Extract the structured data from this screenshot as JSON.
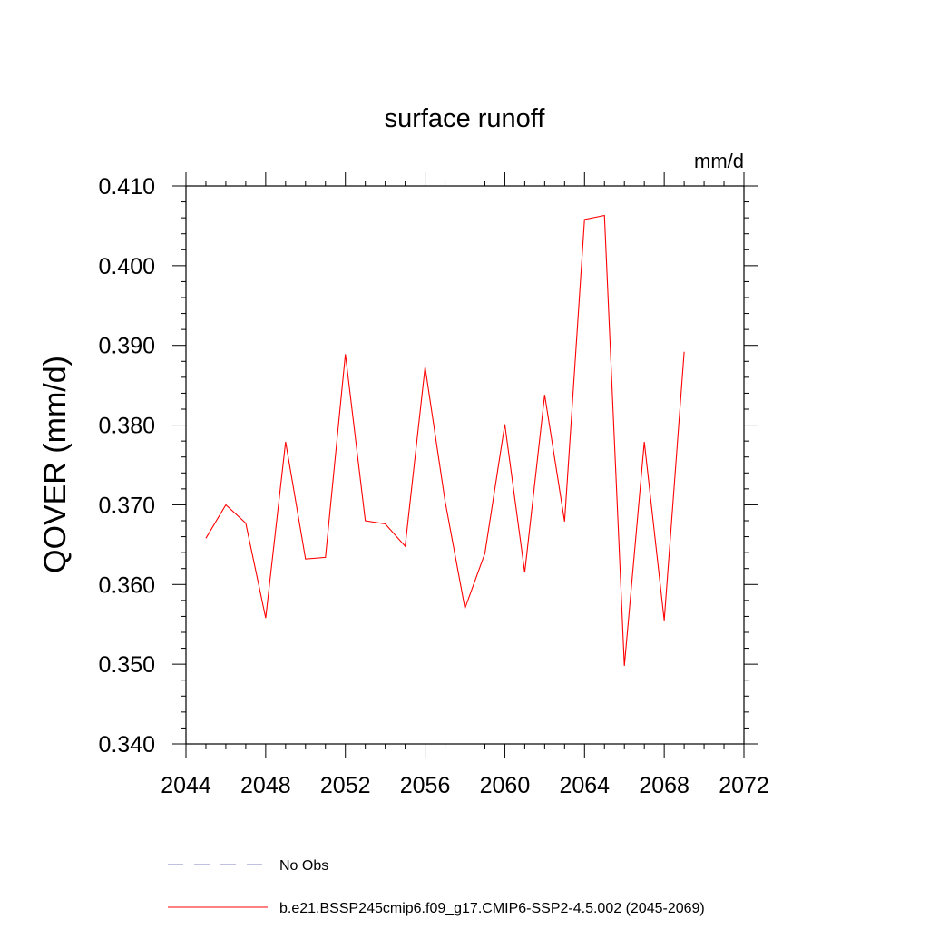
{
  "chart_data": {
    "type": "line",
    "title": "surface runoff",
    "units_label": "mm/d",
    "xlabel": "",
    "ylabel": "QOVER  (mm/d)",
    "xlim": [
      2044,
      2072
    ],
    "ylim": [
      0.34,
      0.41
    ],
    "x_ticks": [
      2044,
      2048,
      2052,
      2056,
      2060,
      2064,
      2068,
      2072
    ],
    "x_tick_labels": [
      "2044",
      "2048",
      "2052",
      "2056",
      "2060",
      "2064",
      "2068",
      "2072"
    ],
    "y_ticks": [
      0.34,
      0.35,
      0.36,
      0.37,
      0.38,
      0.39,
      0.4,
      0.41
    ],
    "y_tick_labels": [
      "0.340",
      "0.350",
      "0.360",
      "0.370",
      "0.380",
      "0.390",
      "0.400",
      "0.410"
    ],
    "grid": false,
    "series": [
      {
        "name": "b.e21.BSSP245cmip6.f09_g17.CMIP6-SSP2-4.5.002 (2045-2069)",
        "color": "#ff0000",
        "x": [
          2045,
          2046,
          2047,
          2048,
          2049,
          2050,
          2051,
          2052,
          2053,
          2054,
          2055,
          2056,
          2057,
          2058,
          2059,
          2060,
          2061,
          2062,
          2063,
          2064,
          2065,
          2066,
          2067,
          2068,
          2069
        ],
        "y": [
          0.3658,
          0.37,
          0.3677,
          0.3558,
          0.3779,
          0.3632,
          0.3634,
          0.3889,
          0.368,
          0.3676,
          0.3648,
          0.3873,
          0.3705,
          0.357,
          0.3639,
          0.3801,
          0.3615,
          0.3838,
          0.3679,
          0.4058,
          0.4063,
          0.3498,
          0.3779,
          0.3555,
          0.3892
        ]
      }
    ],
    "legend": [
      {
        "label": "No Obs",
        "style": "dashed",
        "color": "#8080c0"
      },
      {
        "label": "b.e21.BSSP245cmip6.f09_g17.CMIP6-SSP2-4.5.002 (2045-2069)",
        "style": "solid",
        "color": "#ff0000"
      }
    ],
    "legend_position": "bottom"
  }
}
